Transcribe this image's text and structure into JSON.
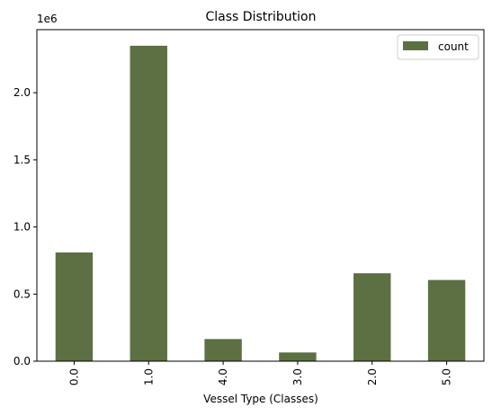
{
  "chart_data": {
    "type": "bar",
    "title": "Class Distribution",
    "xlabel": "Vessel Type (Classes)",
    "ylabel": "",
    "categories": [
      "0.0",
      "1.0",
      "4.0",
      "3.0",
      "2.0",
      "5.0"
    ],
    "series": [
      {
        "name": "count",
        "values": [
          810000,
          2350000,
          165000,
          65000,
          655000,
          605000
        ]
      }
    ],
    "ylim": [
      0,
      2470000
    ],
    "yticks": [
      0,
      500000,
      1000000,
      1500000,
      2000000
    ],
    "ytick_labels": [
      "0.0",
      "0.5",
      "1.0",
      "1.5",
      "2.0"
    ],
    "y_offset_label": "1e6",
    "bar_color": "#5c7043",
    "grid": false,
    "legend_position": "top-right"
  }
}
